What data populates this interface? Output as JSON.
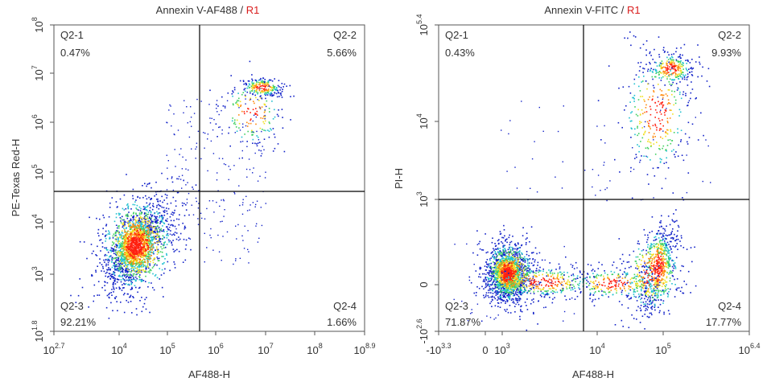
{
  "chart_data": [
    {
      "type": "scatter",
      "subtype": "flow cytometry density dot plot",
      "title": "Annexin V-AF488 / R1",
      "title_main": "Annexin V-AF488 / ",
      "title_gate": "R1",
      "xlabel": "AF488-H",
      "ylabel": "PE-Texas Red-H",
      "x_scale": "log",
      "y_scale": "log",
      "x_ticks": [
        {
          "base": "10",
          "exp": "2.7"
        },
        {
          "base": "10",
          "exp": "4"
        },
        {
          "base": "10",
          "exp": "5"
        },
        {
          "base": "10",
          "exp": "6"
        },
        {
          "base": "10",
          "exp": "7"
        },
        {
          "base": "10",
          "exp": "8"
        },
        {
          "base": "10",
          "exp": "8.9"
        }
      ],
      "y_ticks": [
        {
          "base": "10",
          "exp": "1.8"
        },
        {
          "base": "10",
          "exp": "3"
        },
        {
          "base": "10",
          "exp": "4"
        },
        {
          "base": "10",
          "exp": "5"
        },
        {
          "base": "10",
          "exp": "6"
        },
        {
          "base": "10",
          "exp": "7"
        },
        {
          "base": "10",
          "exp": "8"
        }
      ],
      "gate_x": "10^5.7",
      "gate_y": "10^4.4",
      "quadrants": [
        {
          "name": "Q2-1",
          "percent": "0.47%"
        },
        {
          "name": "Q2-2",
          "percent": "5.66%"
        },
        {
          "name": "Q2-3",
          "percent": "92.21%"
        },
        {
          "name": "Q2-4",
          "percent": "1.66%"
        }
      ],
      "populations_log10": [
        {
          "label": "live cluster",
          "x": 4.4,
          "y": 3.5
        },
        {
          "label": "late apoptotic cluster",
          "x": 6.9,
          "y": 6.8
        }
      ]
    },
    {
      "type": "scatter",
      "subtype": "flow cytometry density dot plot",
      "title": "Annexin V-FITC / R1",
      "title_main": "Annexin V-FITC / ",
      "title_gate": "R1",
      "xlabel": "AF488-H",
      "ylabel": "PI-H",
      "x_scale": "biexponential",
      "y_scale": "biexponential",
      "x_ticks": [
        {
          "base": "-10",
          "exp": "3.3"
        },
        {
          "base": "0",
          "exp": ""
        },
        {
          "base": "10",
          "exp": "3"
        },
        {
          "base": "10",
          "exp": "4"
        },
        {
          "base": "10",
          "exp": "5"
        },
        {
          "base": "10",
          "exp": "6.4"
        }
      ],
      "y_ticks": [
        {
          "base": "-10",
          "exp": "2.6"
        },
        {
          "base": "0",
          "exp": ""
        },
        {
          "base": "10",
          "exp": "3"
        },
        {
          "base": "10",
          "exp": "4"
        },
        {
          "base": "10",
          "exp": "5.4"
        }
      ],
      "gate_x": "10^3.8",
      "gate_y": "10^3",
      "quadrants": [
        {
          "name": "Q2-1",
          "percent": "0.43%"
        },
        {
          "name": "Q2-2",
          "percent": "9.93%"
        },
        {
          "name": "Q2-3",
          "percent": "71.87%"
        },
        {
          "name": "Q2-4",
          "percent": "17.77%"
        }
      ],
      "populations": [
        {
          "label": "live cluster",
          "x": "~10^2.9",
          "y": "~0"
        },
        {
          "label": "early apoptotic cluster",
          "x": "~10^4.9",
          "y": "~0"
        },
        {
          "label": "late apoptotic cluster",
          "x": "~10^5",
          "y": "~10^5"
        }
      ]
    }
  ],
  "colors": {
    "gate_label": "#d91c1c",
    "density_low": "#1020c8",
    "density_mid": "#20c0d0",
    "density_high": "#ff2010",
    "gate_line": "#000000"
  }
}
